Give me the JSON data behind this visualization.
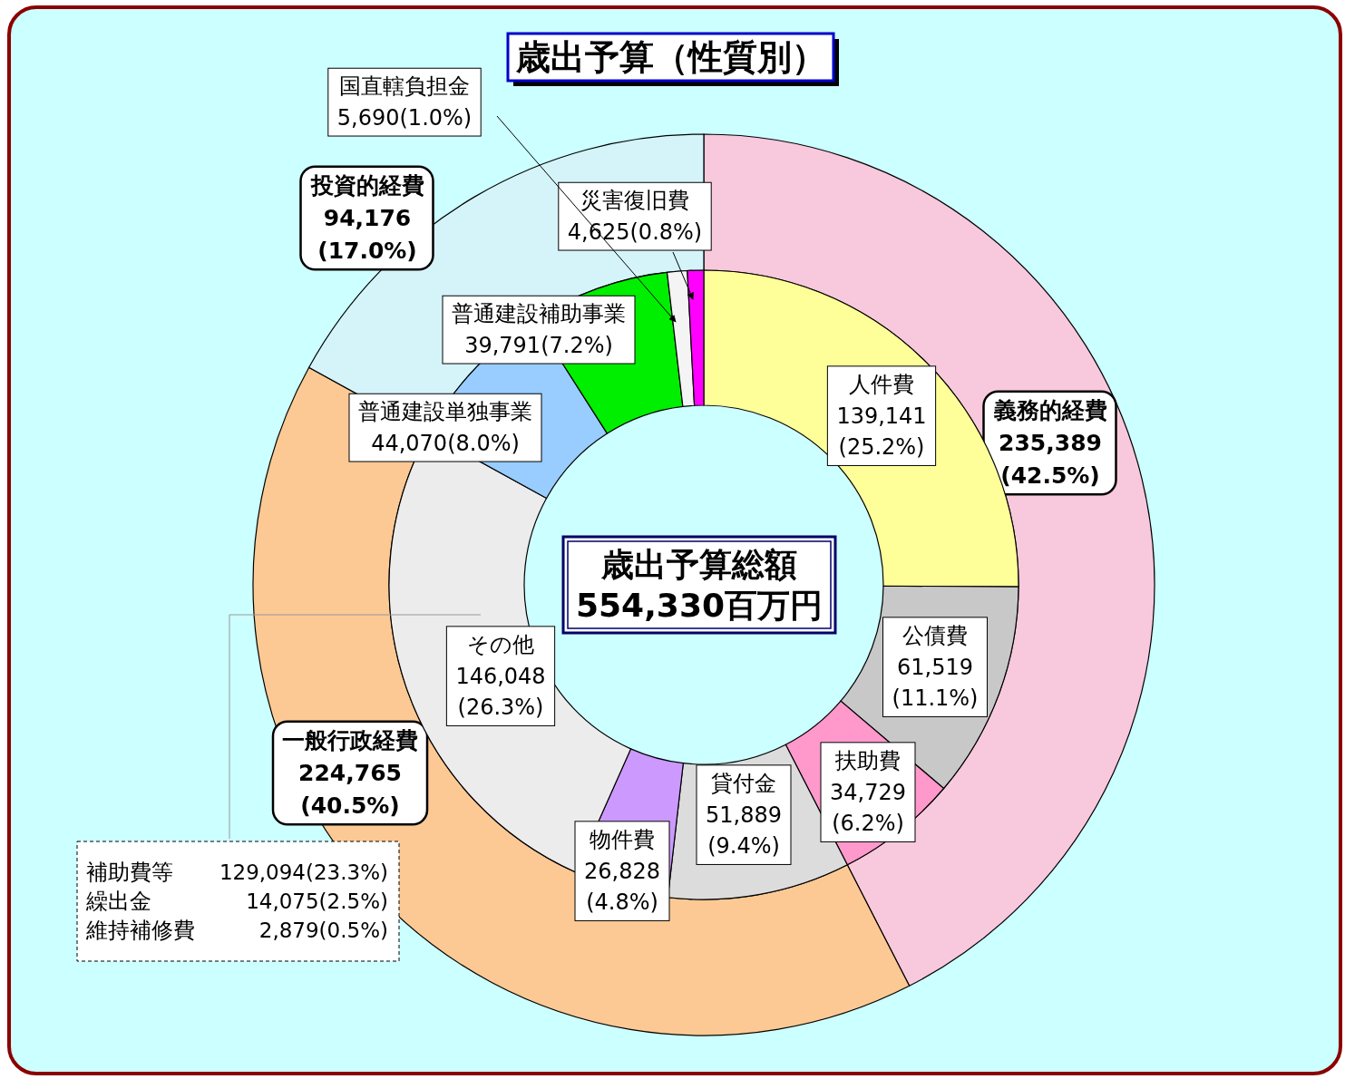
{
  "chart_data": [
    {
      "type": "donut",
      "title": "歳出予算（性質別）",
      "categories": [
        "義務的経費",
        "一般行政経費",
        "投資的経費"
      ],
      "values": [
        235389,
        224765,
        94176
      ],
      "colors": [
        "#f8c8dc",
        "#fcc994",
        "#d4f4fa"
      ],
      "value_labels": [
        "235,389\n(42.5%)",
        "224,765\n(40.5%)",
        "94,176\n(17.0%)"
      ]
    },
    {
      "type": "donut",
      "categories": [
        "人件費",
        "公債費",
        "扶助費",
        "貸付金",
        "物件費",
        "その他",
        "普通建設単独事業",
        "普通建設補助事業",
        "国直轄負担金",
        "災害復旧費"
      ],
      "values": [
        139141,
        61519,
        34729,
        51889,
        26828,
        146048,
        44070,
        39791,
        5690,
        4625
      ],
      "colors": [
        "#ffff99",
        "#c8c8c8",
        "#ff99cc",
        "#dcdcdc",
        "#cc99ff",
        "#ececec",
        "#99ccff",
        "#00ee00",
        "#f4f4f4",
        "#ff00ff"
      ],
      "value_labels": [
        "139,141\n(25.2%)",
        "61,519\n(11.1%)",
        "34,729\n(6.2%)",
        "51,889\n(9.4%)",
        "26,828\n(4.8%)",
        "146,048\n(26.3%)",
        "44,070(8.0%)",
        "39,791(7.2%)",
        "5,690(1.0%)",
        "4,625(0.8%)"
      ],
      "annotations": [
        "歳出予算総額",
        "554,330百万円",
        "補助費等",
        "129,094(23.3%)",
        "繰出金",
        "14,075(2.5%)",
        "維持補修費",
        "2,879(0.5%)"
      ]
    }
  ]
}
